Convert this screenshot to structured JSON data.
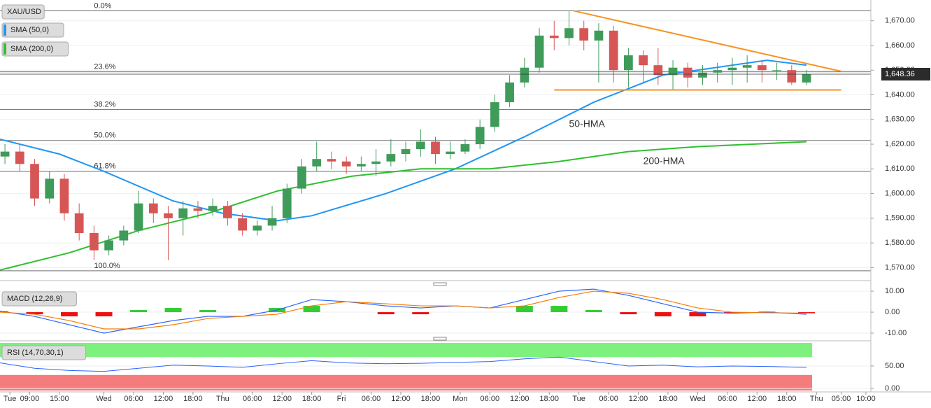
{
  "chart_data": [
    {
      "type": "candlestick",
      "symbol": "XAU/USD",
      "xlim": [
        -21,
        155
      ],
      "ylim": [
        1565,
        1677
      ],
      "xticks": [
        {
          "value": -19,
          "label": "Tue"
        },
        {
          "value": -15,
          "label": "09:00"
        },
        {
          "value": -9,
          "label": "15:00"
        },
        {
          "value": 0,
          "label": "Wed"
        },
        {
          "value": 6,
          "label": "06:00"
        },
        {
          "value": 12,
          "label": "12:00"
        },
        {
          "value": 18,
          "label": "18:00"
        },
        {
          "value": 24,
          "label": "Thu"
        },
        {
          "value": 30,
          "label": "06:00"
        },
        {
          "value": 36,
          "label": "12:00"
        },
        {
          "value": 42,
          "label": "18:00"
        },
        {
          "value": 48,
          "label": "Fri"
        },
        {
          "value": 54,
          "label": "06:00"
        },
        {
          "value": 60,
          "label": "12:00"
        },
        {
          "value": 66,
          "label": "18:00"
        },
        {
          "value": 72,
          "label": "Mon"
        },
        {
          "value": 78,
          "label": "06:00"
        },
        {
          "value": 84,
          "label": "12:00"
        },
        {
          "value": 90,
          "label": "18:00"
        },
        {
          "value": 96,
          "label": "Tue"
        },
        {
          "value": 102,
          "label": "06:00"
        },
        {
          "value": 108,
          "label": "12:00"
        },
        {
          "value": 114,
          "label": "18:00"
        },
        {
          "value": 120,
          "label": "Wed"
        },
        {
          "value": 126,
          "label": "06:00"
        },
        {
          "value": 132,
          "label": "12:00"
        },
        {
          "value": 138,
          "label": "18:00"
        },
        {
          "value": 144,
          "label": "Thu"
        },
        {
          "value": 149,
          "label": "05:00"
        },
        {
          "value": 154,
          "label": "10:00"
        }
      ],
      "yticks": [
        {
          "value": 1570,
          "label": "1,570.00"
        },
        {
          "value": 1580,
          "label": "1,580.00"
        },
        {
          "value": 1590,
          "label": "1,590.00"
        },
        {
          "value": 1600,
          "label": "1,600.00"
        },
        {
          "value": 1610,
          "label": "1,610.00"
        },
        {
          "value": 1620,
          "label": "1,620.00"
        },
        {
          "value": 1630,
          "label": "1,630.00"
        },
        {
          "value": 1640,
          "label": "1,640.00"
        },
        {
          "value": 1650,
          "label": "1,650.00"
        },
        {
          "value": 1660,
          "label": "1,660.00"
        },
        {
          "value": 1670,
          "label": "1,670.00"
        }
      ],
      "up_color": "#3f9b5a",
      "down_color": "#d65656",
      "x": [
        -20,
        -17,
        -14,
        -11,
        -8,
        -5,
        -2,
        1,
        4,
        7,
        10,
        13,
        16,
        19,
        22,
        25,
        28,
        31,
        34,
        37,
        40,
        43,
        46,
        49,
        52,
        55,
        58,
        61,
        64,
        67,
        70,
        73,
        76,
        79,
        82,
        85,
        88,
        91,
        94,
        97,
        100,
        103,
        106,
        109,
        112,
        115,
        118,
        121,
        124,
        127,
        130,
        133,
        136,
        139,
        142
      ],
      "open": [
        1615,
        1617,
        1612,
        1598,
        1606,
        1592,
        1584,
        1577,
        1581,
        1585,
        1596,
        1592,
        1590,
        1594,
        1593,
        1595,
        1590,
        1585,
        1587,
        1590,
        1602,
        1611,
        1614,
        1613,
        1611,
        1612,
        1613,
        1616,
        1618,
        1621,
        1616,
        1617,
        1620,
        1627,
        1637,
        1645,
        1651,
        1664,
        1663,
        1667,
        1662,
        1666,
        1650,
        1656,
        1652,
        1648,
        1651,
        1647,
        1649,
        1650,
        1651,
        1652,
        1650,
        1650,
        1645
      ],
      "high": [
        1620,
        1620,
        1614,
        1609,
        1608,
        1596,
        1587,
        1583,
        1587,
        1601,
        1598,
        1595,
        1597,
        1597,
        1598,
        1597,
        1592,
        1589,
        1595,
        1604,
        1614,
        1621,
        1617,
        1615,
        1615,
        1618,
        1622,
        1621,
        1626,
        1623,
        1621,
        1622,
        1630,
        1640,
        1648,
        1655,
        1667,
        1670,
        1674,
        1670,
        1669,
        1668,
        1659,
        1658,
        1659,
        1654,
        1653,
        1652,
        1653,
        1655,
        1656,
        1654,
        1653,
        1652,
        1650
      ],
      "low": [
        1612,
        1609,
        1595,
        1596,
        1589,
        1581,
        1573,
        1575,
        1579,
        1584,
        1588,
        1573,
        1583,
        1590,
        1591,
        1587,
        1583,
        1583,
        1585,
        1588,
        1600,
        1609,
        1610,
        1608,
        1609,
        1607,
        1611,
        1613,
        1615,
        1612,
        1614,
        1616,
        1618,
        1625,
        1635,
        1643,
        1649,
        1658,
        1660,
        1658,
        1645,
        1645,
        1643,
        1645,
        1644,
        1642,
        1643,
        1644,
        1645,
        1644,
        1645,
        1645,
        1646,
        1644,
        1644
      ],
      "close": [
        1617,
        1612,
        1598,
        1606,
        1592,
        1584,
        1577,
        1581,
        1585,
        1596,
        1592,
        1590,
        1594,
        1593,
        1595,
        1590,
        1585,
        1587,
        1590,
        1602,
        1611,
        1614,
        1613,
        1611,
        1612,
        1613,
        1616,
        1618,
        1621,
        1616,
        1617,
        1620,
        1627,
        1637,
        1645,
        1651,
        1664,
        1663,
        1667,
        1662,
        1666,
        1650,
        1656,
        1652,
        1648,
        1651,
        1647,
        1649,
        1650,
        1651,
        1652,
        1650,
        1650,
        1645,
        1648.36
      ],
      "last_price": {
        "value": 1648.36,
        "label": "1,648.36"
      },
      "series": [
        {
          "name": "SMA (50,0)",
          "color": "#2196f3",
          "x": [
            -21,
            -9,
            0,
            14,
            24,
            35,
            42,
            57,
            71,
            85,
            99,
            113,
            127,
            134,
            142
          ],
          "values": [
            1622,
            1616,
            1609,
            1597,
            1592,
            1589,
            1591,
            1600,
            1610,
            1623,
            1637,
            1648,
            1652,
            1654,
            1652
          ]
        },
        {
          "name": "SMA (200,0)",
          "color": "#2fbf2f",
          "x": [
            -21,
            -7,
            7,
            21,
            35,
            50,
            64,
            78,
            92,
            106,
            120,
            142
          ],
          "values": [
            1569,
            1576,
            1585,
            1592,
            1601,
            1607,
            1610,
            1610,
            1613,
            1617,
            1619,
            1621
          ]
        }
      ],
      "fib_levels": [
        {
          "label": "0.0%",
          "value": 1674
        },
        {
          "label": "23.6%",
          "value": 1649.3
        },
        {
          "label": "38.2%",
          "value": 1634
        },
        {
          "label": "50.0%",
          "value": 1621.5
        },
        {
          "label": "61.8%",
          "value": 1609
        },
        {
          "label": "100.0%",
          "value": 1568.7
        }
      ],
      "fib_label_x": -2,
      "trendlines": [
        {
          "color": "#f7931e",
          "x": [
            95,
            149
          ],
          "values": [
            1674,
            1649.5
          ]
        },
        {
          "color": "#f7931e",
          "x": [
            91,
            149
          ],
          "values": [
            1642,
            1642
          ]
        }
      ],
      "annotations": [
        {
          "text": "50-HMA",
          "x": 94,
          "y": 1628,
          "color": "#2196f3"
        },
        {
          "text": "200-HMA",
          "x": 109,
          "y": 1613,
          "color": "#2fbf2f"
        }
      ]
    },
    {
      "type": "macd",
      "label": "MACD (12,26,9)",
      "ylim": [
        -13,
        13.7
      ],
      "yticks": [
        {
          "value": -10,
          "label": "-10.00"
        },
        {
          "value": 0,
          "label": "0.00"
        },
        {
          "value": 10,
          "label": "10.00"
        }
      ],
      "x": [
        -21,
        -14,
        -7,
        0,
        7,
        14,
        21,
        28,
        35,
        42,
        49,
        57,
        64,
        71,
        78,
        85,
        92,
        99,
        106,
        113,
        120,
        127,
        134,
        142
      ],
      "series": [
        {
          "color": "#2962ff",
          "values": [
            0.5,
            -2,
            -6,
            -10,
            -7,
            -4,
            -2,
            -2,
            1,
            6,
            5,
            3,
            2,
            3,
            2,
            6,
            10,
            11,
            8,
            4,
            0,
            -0.5,
            0,
            -1
          ]
        },
        {
          "color": "#f57c00",
          "values": [
            0,
            -1,
            -4,
            -8,
            -8,
            -6,
            -3,
            -2,
            -1,
            3,
            5,
            4,
            3,
            3,
            2,
            3,
            7,
            10,
            9,
            6,
            2,
            0,
            -0.3,
            -0.5
          ]
        }
      ],
      "histogram": [
        0.5,
        -1,
        -2,
        -2,
        1,
        2,
        1,
        0,
        2,
        3,
        0,
        -1,
        -1,
        0,
        0,
        3,
        3,
        1,
        -1,
        -2,
        -2,
        -0.5,
        0.3,
        -0.5
      ],
      "up_color": "#33cc33",
      "down_color": "#ee1111"
    },
    {
      "type": "rsi",
      "label": "RSI (14,70,30,1)",
      "ylim": [
        -4.7,
        101.6
      ],
      "yticks": [
        {
          "value": 0,
          "label": "0.00"
        },
        {
          "value": 50,
          "label": "50.00"
        }
      ],
      "overbought": 70,
      "oversold": 30,
      "overbought_color": "#7ef07e",
      "oversold_color": "#f47c7c",
      "x": [
        -21,
        -14,
        -7,
        0,
        7,
        14,
        21,
        28,
        35,
        42,
        49,
        57,
        64,
        71,
        78,
        85,
        92,
        99,
        106,
        113,
        120,
        127,
        134,
        142
      ],
      "values": [
        57,
        45,
        40,
        38,
        45,
        52,
        50,
        47,
        55,
        62,
        57,
        55,
        56,
        58,
        60,
        66,
        70,
        60,
        50,
        52,
        48,
        50,
        49,
        47
      ],
      "color": "#2962ff"
    }
  ]
}
